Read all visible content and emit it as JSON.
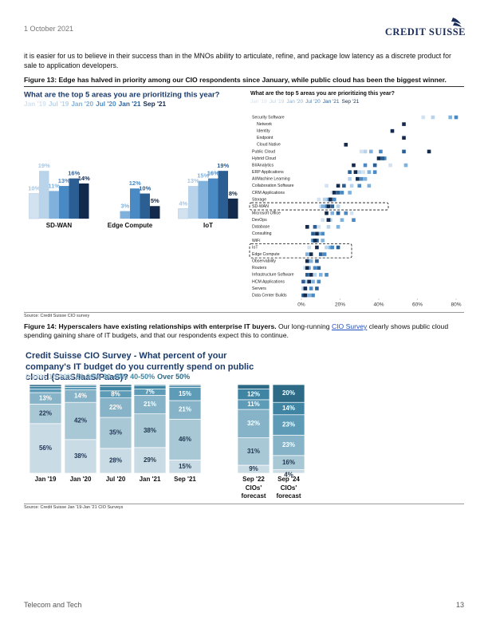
{
  "header": {
    "date": "1 October 2021",
    "logo": "CREDIT SUISSE"
  },
  "body": {
    "paragraph": "it is easier for us to believe in their success than in the MNOs ability to articulate, refine, and package low latency as a discrete product for sale to application developers."
  },
  "figure13": {
    "caption": "Figure 13: Edge has halved in priority among our CIO respondents since January, while public cloud has been the biggest winner.",
    "left_chart": {
      "type": "bar",
      "title": "What are the top 5 areas you are prioritizing this year?",
      "categories": [
        "SD-WAN",
        "Edge Compute",
        "IoT"
      ],
      "ylim": [
        0,
        20
      ],
      "series": [
        {
          "name": "Jan '19",
          "color": "#d3e2f0",
          "values": [
            10,
            null,
            4
          ],
          "value_labels": [
            "10%",
            null,
            "4%"
          ]
        },
        {
          "name": "Jul '19",
          "color": "#b9d3ea",
          "values": [
            19,
            null,
            13
          ],
          "value_labels": [
            "19%",
            null,
            "13%"
          ]
        },
        {
          "name": "Jan '20",
          "color": "#7fb1dc",
          "values": [
            11,
            3,
            15
          ],
          "value_labels": [
            "11%",
            "3%",
            "15%"
          ]
        },
        {
          "name": "Jul '20",
          "color": "#4a8ac4",
          "values": [
            13,
            12,
            16
          ],
          "value_labels": [
            "13%",
            "12%",
            "16%"
          ]
        },
        {
          "name": "Jan '21",
          "color": "#2b5e93",
          "values": [
            16,
            10,
            19
          ],
          "value_labels": [
            "16%",
            "10%",
            "19%"
          ]
        },
        {
          "name": "Sep '21",
          "color": "#142a4c",
          "values": [
            14,
            5,
            8
          ],
          "value_labels": [
            "14%",
            "5%",
            "8%"
          ]
        }
      ]
    },
    "right_chart": {
      "type": "dot",
      "title": "What are the top 5 areas you are prioritizing this year?",
      "categories": [
        "Security Software",
        "Network",
        "Identity",
        "Endpoint",
        "Cloud Native",
        "Public Cloud",
        "Hybrid Cloud",
        "BI/Analytics",
        "ERP Applications",
        "AI/Machine Learning",
        "Collaboration Software",
        "CRM Applications",
        "Storage",
        "SD-WAN",
        "Microsoft Office",
        "DevOps",
        "Database",
        "Consulting",
        "WiFi",
        "IoT",
        "Edge Compute",
        "Observability",
        "Routers",
        "Infrastructure Software",
        "HCM Applications",
        "Servers",
        "Data Center Builds"
      ],
      "xlim": [
        0,
        80
      ],
      "xticks": [
        {
          "value": 0,
          "label": "0%"
        },
        {
          "value": 20,
          "label": "20%"
        },
        {
          "value": 40,
          "label": "40%"
        },
        {
          "value": 60,
          "label": "60%"
        },
        {
          "value": 80,
          "label": "80%"
        }
      ],
      "series": [
        {
          "name": "Jan '19",
          "color": "#d3e2f0",
          "values": [
            63,
            null,
            null,
            null,
            null,
            31,
            null,
            46,
            32,
            null,
            13,
            16,
            9,
            10,
            26,
            11,
            9,
            null,
            6,
            4,
            null,
            null,
            null,
            null,
            null,
            null,
            null
          ]
        },
        {
          "name": "Jul '19",
          "color": "#b9d3ea",
          "values": [
            68,
            null,
            null,
            null,
            null,
            33,
            40,
            38,
            30,
            25,
            26,
            19,
            12,
            19,
            19,
            15,
            14,
            6,
            8,
            13,
            null,
            null,
            2,
            7,
            3,
            1,
            2
          ]
        },
        {
          "name": "Jan '20",
          "color": "#7fb1dc",
          "values": [
            77,
            null,
            null,
            null,
            null,
            36,
            41,
            54,
            35,
            33,
            35,
            25,
            14,
            11,
            16,
            21,
            19,
            9,
            11,
            15,
            3,
            5,
            4,
            10,
            6,
            2,
            4
          ]
        },
        {
          "name": "Jul '20",
          "color": "#4a8ac4",
          "values": [
            80,
            null,
            null,
            null,
            null,
            41,
            43,
            33,
            38,
            31,
            30,
            21,
            17,
            13,
            23,
            27,
            3,
            11,
            6,
            16,
            12,
            3,
            7,
            13,
            9,
            5,
            6
          ]
        },
        {
          "name": "Jan '21",
          "color": "#2b5e93",
          "values": [
            null,
            null,
            null,
            null,
            null,
            53,
            42,
            38,
            25,
            29,
            22,
            19,
            15,
            16,
            19,
            14,
            7,
            6,
            8,
            19,
            10,
            8,
            9,
            3,
            1,
            8,
            1
          ]
        },
        {
          "name": "Sep '21",
          "color": "#142a4c",
          "values": [
            null,
            53,
            47,
            53,
            23,
            66,
            40,
            27,
            28,
            29,
            19,
            17,
            15,
            14,
            13,
            14,
            3,
            8,
            7,
            8,
            5,
            3,
            3,
            5,
            4,
            2,
            2
          ]
        }
      ]
    },
    "source": "Source: Credit Suisse CIO survey"
  },
  "figure14": {
    "caption_bold": "Figure 14: Hyperscalers have existing relationships with enterprise IT buyers.",
    "caption_before_link": " Our long-running ",
    "caption_link": "CIO Survey",
    "caption_after_link": " clearly shows public cloud spending gaining share of IT budgets, and that our respondents expect this to continue.",
    "chart": {
      "type": "stacked_bar",
      "title": "Credit Suisse CIO Survey - What percent of your company's IT budget do you currently spend on public cloud (SaaS/IaaS/PaaS)?",
      "categories": [
        "Jan '19",
        "Jan '20",
        "Jul '20",
        "Jan '21",
        "Sep '21",
        "Sep '22 CIOs' forecast",
        "Sep '24 CIOs' forecast"
      ],
      "ylim": [
        0,
        100
      ],
      "series": [
        {
          "name": "0-10%",
          "color": "#c9dce5",
          "values": [
            56,
            38,
            28,
            29,
            15,
            9,
            4
          ],
          "value_labels": [
            "56%",
            "38%",
            "28%",
            "29%",
            "15%",
            "9%",
            "4%"
          ]
        },
        {
          "name": "10-20%",
          "color": "#a9c8d6",
          "values": [
            22,
            42,
            35,
            38,
            46,
            31,
            16
          ],
          "value_labels": [
            "22%",
            "42%",
            "35%",
            "38%",
            "46%",
            "31%",
            "16%"
          ]
        },
        {
          "name": "20-30%",
          "color": "#86b3c7",
          "values": [
            13,
            14,
            22,
            21,
            21,
            32,
            23
          ],
          "value_labels": [
            "13%",
            "14%",
            "22%",
            "21%",
            "21%",
            "32%",
            "23%"
          ]
        },
        {
          "name": "30-40%",
          "color": "#5e9bb6",
          "values": [
            4,
            3,
            8,
            7,
            15,
            11,
            23
          ],
          "value_labels": [
            null,
            null,
            "8%",
            "7%",
            "15%",
            "11%",
            "23%"
          ]
        },
        {
          "name": "40-50%",
          "color": "#3f85a3",
          "values": [
            3,
            2,
            5,
            4,
            2,
            12,
            14
          ],
          "value_labels": [
            null,
            null,
            "5%",
            "4%",
            "2%",
            "12%",
            "14%"
          ]
        },
        {
          "name": "Over 50%",
          "color": "#2c6a86",
          "values": [
            2,
            1,
            2,
            1,
            1,
            5,
            20
          ],
          "value_labels": [
            null,
            null,
            null,
            null,
            null,
            null,
            "20%"
          ]
        }
      ]
    },
    "source": "Source: Credit Suisse Jan '19-Jan '21 CIO Surveys"
  },
  "footer": {
    "section": "Telecom and Tech",
    "page": "13"
  }
}
